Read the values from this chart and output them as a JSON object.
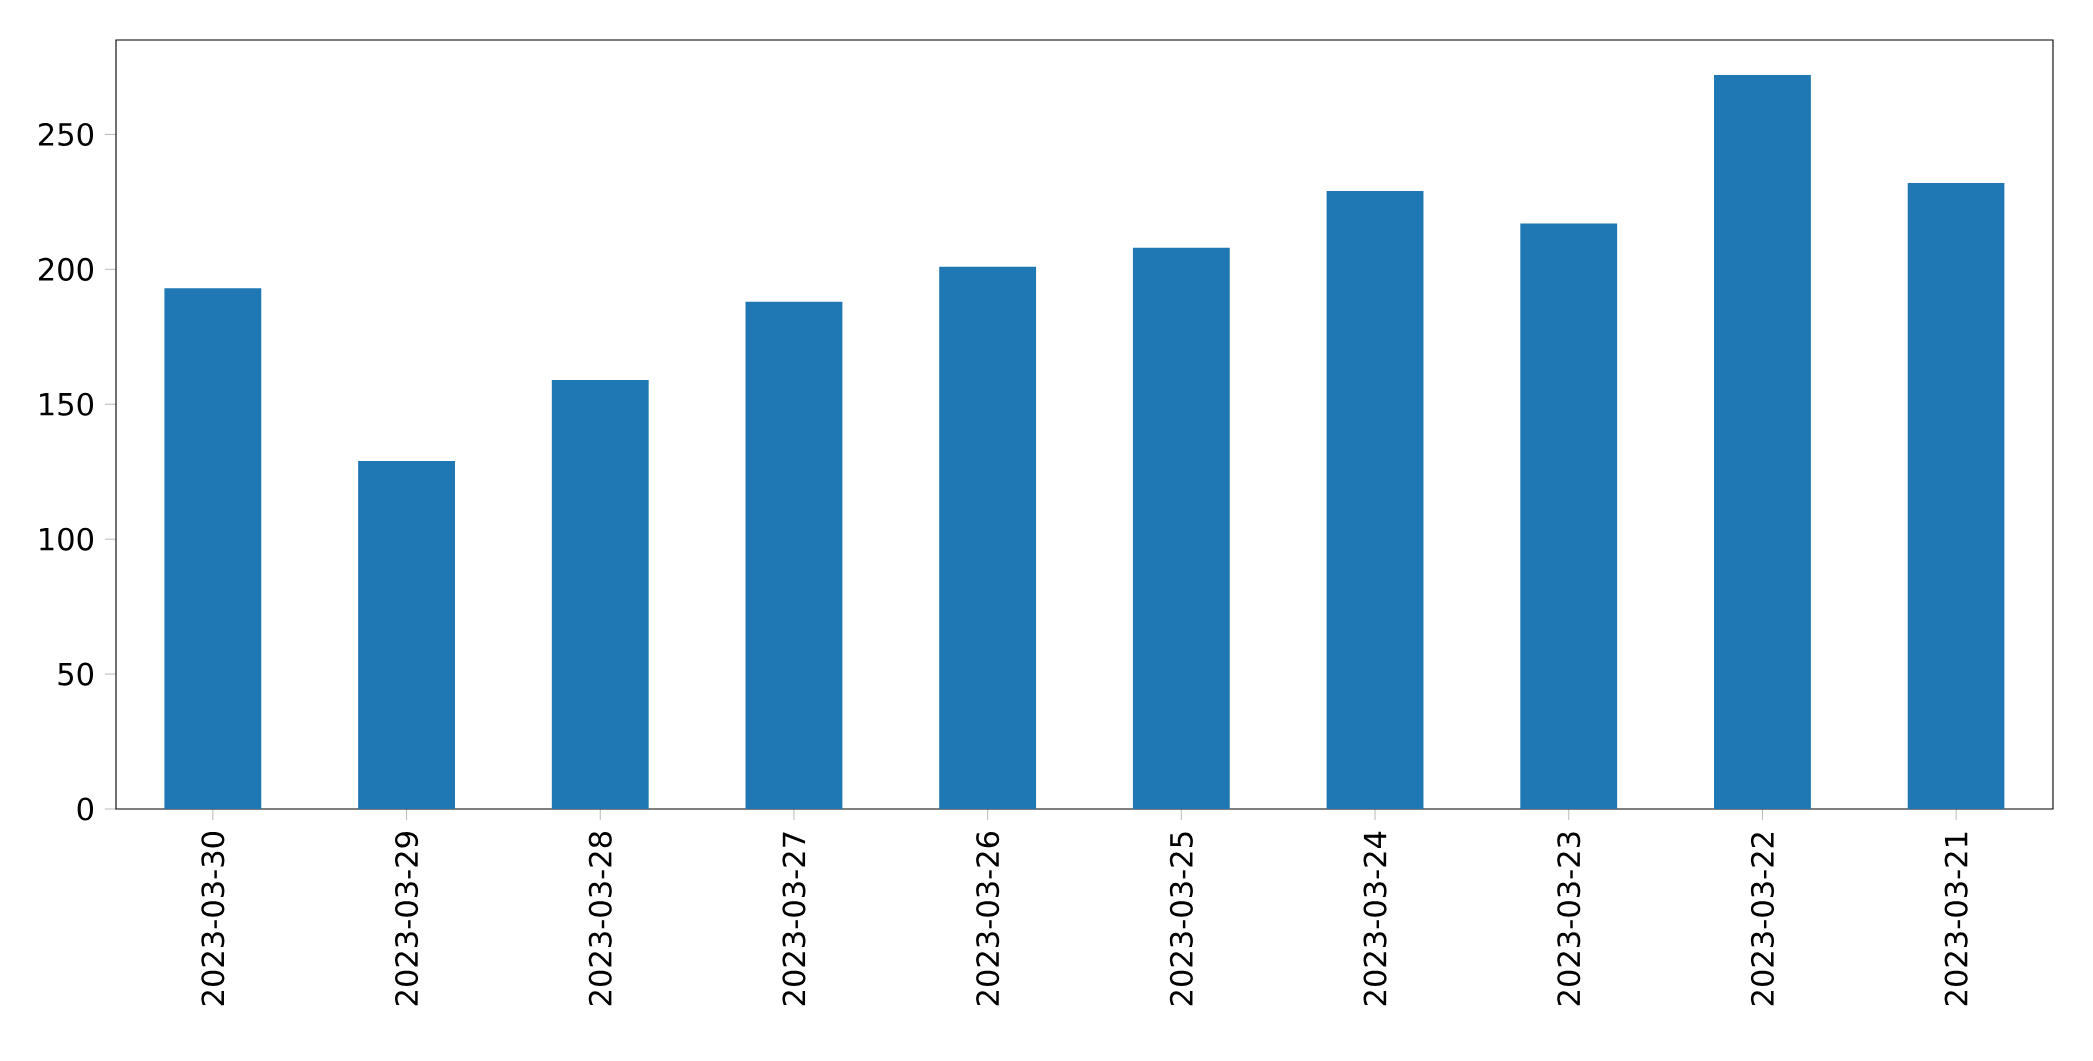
{
  "chart_data": {
    "type": "bar",
    "categories": [
      "2023-03-30",
      "2023-03-29",
      "2023-03-28",
      "2023-03-27",
      "2023-03-26",
      "2023-03-25",
      "2023-03-24",
      "2023-03-23",
      "2023-03-22",
      "2023-03-21"
    ],
    "values": [
      193,
      129,
      159,
      188,
      201,
      208,
      229,
      217,
      272,
      232
    ],
    "color": "#1f77b4",
    "ylim": [
      0,
      285
    ],
    "yticks": [
      0,
      50,
      100,
      150,
      200,
      250
    ],
    "grid": false
  }
}
